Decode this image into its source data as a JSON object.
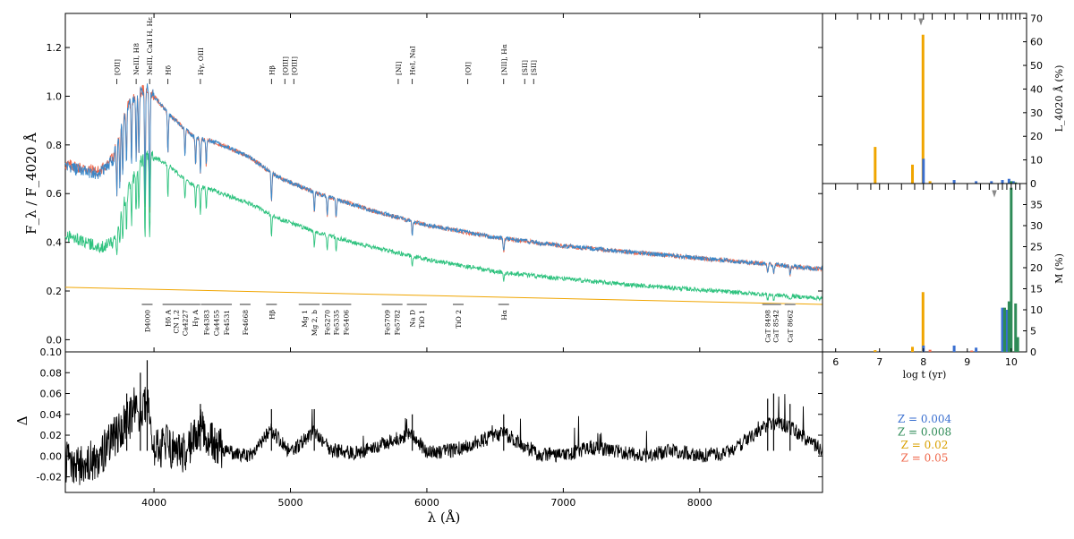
{
  "chart_data": [
    {
      "type": "line",
      "panel": "spectrum",
      "xlabel": "λ (Å)",
      "ylabel": "F_λ / F_4020 Å",
      "xlim": [
        3350,
        8900
      ],
      "ylim": [
        -0.05,
        1.34
      ],
      "xticks": [
        4000,
        5000,
        6000,
        7000,
        8000
      ],
      "yticks": [
        0.0,
        0.2,
        0.4,
        0.6,
        0.8,
        1.0,
        1.2
      ],
      "series": [
        {
          "color": "#ef6548",
          "role": "observed",
          "x": [
            3350,
            3600,
            3700,
            3800,
            3900,
            3950,
            4000,
            4100,
            4200,
            4300,
            4400,
            4500,
            4700,
            4900,
            5200,
            5600,
            6000,
            6500,
            7000,
            7500,
            8000,
            8500,
            8900
          ],
          "y": [
            0.72,
            0.69,
            0.75,
            0.96,
            1.02,
            1.03,
            1.0,
            0.93,
            0.88,
            0.83,
            0.82,
            0.8,
            0.75,
            0.67,
            0.6,
            0.53,
            0.47,
            0.42,
            0.385,
            0.36,
            0.335,
            0.31,
            0.29
          ]
        },
        {
          "color": "#3a87c8",
          "role": "model",
          "x": [
            3350,
            3600,
            3700,
            3800,
            3900,
            3950,
            4000,
            4100,
            4200,
            4300,
            4400,
            4500,
            4700,
            4900,
            5200,
            5600,
            6000,
            6500,
            7000,
            7500,
            8000,
            8500,
            8900
          ],
          "y": [
            0.71,
            0.68,
            0.74,
            0.96,
            1.02,
            1.03,
            1.0,
            0.93,
            0.88,
            0.83,
            0.82,
            0.8,
            0.75,
            0.67,
            0.6,
            0.53,
            0.47,
            0.42,
            0.385,
            0.36,
            0.335,
            0.31,
            0.29
          ]
        },
        {
          "color": "#2ec27e",
          "role": "component",
          "x": [
            3350,
            3600,
            3700,
            3800,
            3900,
            3950,
            4000,
            4100,
            4200,
            4300,
            4400,
            4500,
            4700,
            4900,
            5200,
            5600,
            6000,
            6500,
            7000,
            7500,
            8000,
            8500,
            8900
          ],
          "y": [
            0.43,
            0.38,
            0.4,
            0.6,
            0.73,
            0.76,
            0.75,
            0.72,
            0.67,
            0.63,
            0.62,
            0.6,
            0.56,
            0.5,
            0.44,
            0.38,
            0.33,
            0.28,
            0.25,
            0.225,
            0.205,
            0.185,
            0.17
          ]
        },
        {
          "color": "#f0a500",
          "role": "component",
          "x": [
            3350,
            8900
          ],
          "y": [
            0.215,
            0.145
          ]
        }
      ],
      "absorption_lines_top": [
        {
          "label": "[OII]",
          "x": 3727
        },
        {
          "label": "NeIII, H8",
          "x": 3869
        },
        {
          "label": "NeIII, CaII H, Hε",
          "x": 3968
        },
        {
          "label": "Hδ",
          "x": 4102
        },
        {
          "label": "Hγ, OIII",
          "x": 4340
        },
        {
          "label": "Hβ",
          "x": 4861
        },
        {
          "label": "[OIII]",
          "x": 4959
        },
        {
          "label": "[OIII]",
          "x": 5007
        },
        {
          "label": "[NI]",
          "x": 5790
        },
        {
          "label": "HeI, NaI",
          "x": 5893
        },
        {
          "label": "[OI]",
          "x": 6300
        },
        {
          "label": "[NII], Hα",
          "x": 6563
        },
        {
          "label": "[SII]",
          "x": 6717
        },
        {
          "label": "[SII]",
          "x": 6731
        }
      ],
      "index_bands": [
        {
          "label": "D4000",
          "x": 3950
        },
        {
          "label": "Hδ A",
          "x": 4102
        },
        {
          "label": "CN 1,2",
          "x": 4160
        },
        {
          "label": "Ca4227",
          "x": 4227
        },
        {
          "label": "Hγ A",
          "x": 4300
        },
        {
          "label": "Fe4383",
          "x": 4383
        },
        {
          "label": "Ca4455",
          "x": 4455
        },
        {
          "label": "Fe4531",
          "x": 4531
        },
        {
          "label": "Fe4668",
          "x": 4668
        },
        {
          "label": "Hβ",
          "x": 4861
        },
        {
          "label": "Mg 1",
          "x": 5100
        },
        {
          "label": "Mg 2, b",
          "x": 5175
        },
        {
          "label": "Fe5270",
          "x": 5270
        },
        {
          "label": "Fe5335",
          "x": 5335
        },
        {
          "label": "Fe5406",
          "x": 5406
        },
        {
          "label": "Fe5709",
          "x": 5709
        },
        {
          "label": "Fe5782",
          "x": 5782
        },
        {
          "label": "Na D",
          "x": 5893
        },
        {
          "label": "TiO 1",
          "x": 5960
        },
        {
          "label": "TiO 2",
          "x": 6230
        },
        {
          "label": "Hα",
          "x": 6563
        },
        {
          "label": "CaT 8498",
          "x": 8498
        },
        {
          "label": "CaT 8542",
          "x": 8542
        },
        {
          "label": "CaT 8662",
          "x": 8662
        }
      ]
    },
    {
      "type": "line",
      "panel": "residuals",
      "ylabel": "Δ",
      "xlabel": "λ (Å)",
      "xlim": [
        3350,
        8900
      ],
      "ylim": [
        -0.035,
        0.1
      ],
      "xticks": [
        4000,
        5000,
        6000,
        7000,
        8000
      ],
      "yticks": [
        -0.02,
        0.0,
        0.02,
        0.04,
        0.06,
        0.08,
        0.1
      ],
      "series": [
        {
          "color": "#000000",
          "x": [
            3350,
            3450,
            3600,
            3700,
            3800,
            3900,
            3950,
            4000,
            4100,
            4200,
            4340,
            4500,
            4700,
            4861,
            5000,
            5175,
            5300,
            5500,
            5893,
            6000,
            6200,
            6563,
            6800,
            7000,
            7200,
            7600,
            7800,
            8000,
            8200,
            8498,
            8542,
            8662,
            8900
          ],
          "y": [
            -0.01,
            -0.02,
            0.0,
            0.03,
            0.06,
            0.08,
            0.092,
            0.01,
            0.02,
            0.0,
            0.05,
            0.01,
            0.0,
            0.045,
            0.005,
            0.045,
            0.01,
            0.005,
            0.04,
            0.005,
            0.01,
            0.04,
            0.005,
            0.0,
            0.015,
            0.0,
            0.01,
            0.0,
            0.005,
            0.055,
            0.06,
            0.05,
            0.01
          ]
        }
      ]
    },
    {
      "type": "bar",
      "panel": "light-fraction",
      "ylabel": "L_4020 Å (%)",
      "xlim": [
        5.7,
        10.35
      ],
      "ylim": [
        0,
        72
      ],
      "yticks": [
        0,
        10,
        20,
        30,
        40,
        50,
        60,
        70
      ],
      "series": [
        {
          "name": "Z = 0.02",
          "color": "#f0a500",
          "x": [
            6.9,
            7.75,
            7.99,
            8.15
          ],
          "values": [
            15.5,
            8,
            63,
            1
          ]
        },
        {
          "name": "Z = 0.004",
          "color": "#3a6fd0",
          "x": [
            8.0,
            8.7,
            9.2,
            9.55,
            9.8,
            9.95,
            10.05
          ],
          "values": [
            10.5,
            1.5,
            1.0,
            1.0,
            1.5,
            2.0,
            1.0
          ]
        },
        {
          "name": "Z = 0.008",
          "color": "#2e8b57",
          "x": [
            10.0,
            10.1
          ],
          "values": [
            1.0,
            0.5
          ]
        },
        {
          "name": "Z = 0.05",
          "color": "#ef6548",
          "x": [],
          "values": []
        }
      ]
    },
    {
      "type": "bar",
      "panel": "mass-fraction",
      "xlabel": "log t (yr)",
      "ylabel": "M (%)",
      "xlim": [
        5.7,
        10.35
      ],
      "ylim": [
        0,
        40
      ],
      "xticks": [
        6,
        7,
        8,
        9,
        10
      ],
      "yticks": [
        0,
        5,
        10,
        15,
        20,
        25,
        30,
        35
      ],
      "series": [
        {
          "name": "Z = 0.02",
          "color": "#f0a500",
          "x": [
            6.9,
            7.75,
            7.99
          ],
          "values": [
            0.4,
            1.2,
            14.2
          ]
        },
        {
          "name": "Z = 0.004",
          "color": "#3a6fd0",
          "x": [
            8.0,
            8.7,
            9.2,
            9.8,
            9.9
          ],
          "values": [
            1.5,
            1.5,
            1.0,
            10.5,
            10.0
          ]
        },
        {
          "name": "Z = 0.008",
          "color": "#2e8b57",
          "x": [
            9.85,
            9.95,
            10.0,
            10.1,
            10.15
          ],
          "values": [
            10.5,
            12,
            39,
            11.5,
            3.5
          ]
        },
        {
          "name": "Z = 0.05",
          "color": "#ef6548",
          "x": [
            8.15,
            9.1
          ],
          "values": [
            0.5,
            0.3
          ]
        }
      ]
    }
  ],
  "legend": {
    "items": [
      {
        "label": "Z = 0.004",
        "color": "#3a6fd0"
      },
      {
        "label": "Z = 0.008",
        "color": "#2e8b57"
      },
      {
        "label": "Z = 0.02",
        "color": "#d9a000"
      },
      {
        "label": "Z = 0.05",
        "color": "#ef6548"
      }
    ]
  }
}
